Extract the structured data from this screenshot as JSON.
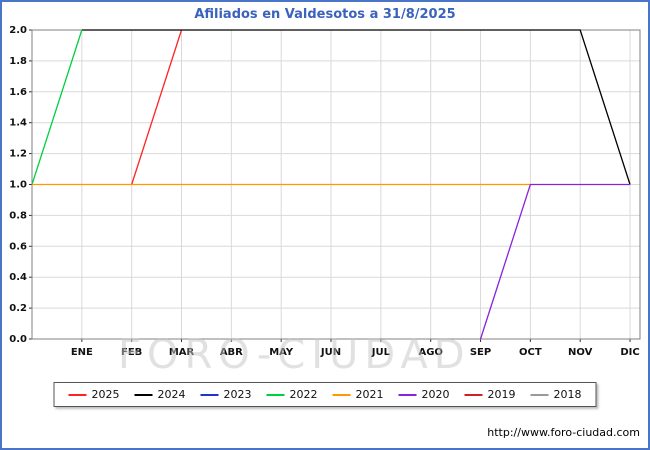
{
  "colors": {
    "accent": "#3b63be",
    "frame": "#4a74c8"
  },
  "header": {
    "title": "Afiliados en Valdesotos a 31/8/2025"
  },
  "watermark": "FORO-CIUDAD",
  "footer": {
    "url": "http://www.foro-ciudad.com"
  },
  "chart_data": {
    "type": "line",
    "title": "Afiliados en Valdesotos a 31/8/2025",
    "x_tick_labels": [
      "ENE",
      "FEB",
      "MAR",
      "ABR",
      "MAY",
      "JUN",
      "JUL",
      "AGO",
      "SEP",
      "OCT",
      "NOV",
      "DIC"
    ],
    "x_range": [
      -1,
      11.2
    ],
    "ylim": [
      0,
      2
    ],
    "y_tick_step": 0.2,
    "grid": true,
    "legend_position": "bottom",
    "series": [
      {
        "name": "2025",
        "color": "#ff2222",
        "points": [
          [
            1,
            1
          ],
          [
            2,
            2
          ]
        ]
      },
      {
        "name": "2024",
        "color": "#000000",
        "points": [
          [
            0,
            2
          ],
          [
            10,
            2
          ],
          [
            11,
            1
          ]
        ]
      },
      {
        "name": "2023",
        "color": "#2233cc",
        "points": []
      },
      {
        "name": "2022",
        "color": "#00d040",
        "points": [
          [
            -1,
            1
          ],
          [
            0,
            2
          ]
        ]
      },
      {
        "name": "2021",
        "color": "#ff9900",
        "points": [
          [
            -1,
            1
          ],
          [
            9,
            1
          ]
        ]
      },
      {
        "name": "2020",
        "color": "#8822dd",
        "points": [
          [
            8,
            0
          ],
          [
            9,
            1
          ],
          [
            11,
            1
          ]
        ]
      },
      {
        "name": "2019",
        "color": "#cc2222",
        "points": []
      },
      {
        "name": "2018",
        "color": "#999999",
        "points": []
      }
    ]
  }
}
